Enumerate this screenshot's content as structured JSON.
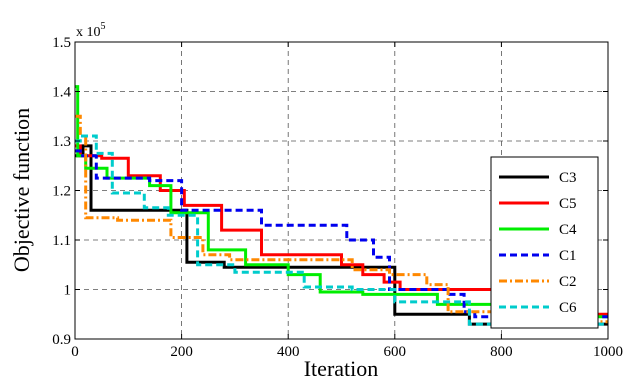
{
  "chart_data": {
    "type": "line",
    "step": true,
    "xlabel": "Iteration",
    "ylabel": "Objective function",
    "y_multiplier_label": "x 10",
    "y_multiplier_exponent": "5",
    "xlim": [
      0,
      1000
    ],
    "ylim": [
      0.9,
      1.5
    ],
    "x_ticks": [
      0,
      200,
      400,
      600,
      800,
      1000
    ],
    "x_tick_labels": [
      "0",
      "200",
      "400",
      "600",
      "800",
      "1000"
    ],
    "y_ticks": [
      0.9,
      1.0,
      1.1,
      1.2,
      1.3,
      1.4,
      1.5
    ],
    "y_tick_labels": [
      "0.9",
      "1",
      "1.1",
      "1.2",
      "1.3",
      "1.4",
      "1.5"
    ],
    "grid": true,
    "legend_position": "right",
    "series": [
      {
        "name": "C3",
        "color": "#000000",
        "dash": "solid",
        "x": [
          0,
          15,
          30,
          210,
          280,
          600,
          740,
          1000
        ],
        "y": [
          1.27,
          1.29,
          1.16,
          1.055,
          1.045,
          0.95,
          0.93,
          0.93
        ]
      },
      {
        "name": "C5",
        "color": "#ff0000",
        "dash": "solid",
        "x": [
          0,
          10,
          50,
          100,
          160,
          205,
          275,
          350,
          500,
          540,
          580,
          610,
          800,
          870,
          1000
        ],
        "y": [
          1.29,
          1.27,
          1.265,
          1.23,
          1.2,
          1.17,
          1.12,
          1.07,
          1.05,
          1.03,
          1.015,
          1.0,
          0.96,
          0.95,
          0.95
        ]
      },
      {
        "name": "C4",
        "color": "#00ee00",
        "dash": "solid",
        "x": [
          0,
          5,
          20,
          60,
          140,
          180,
          250,
          320,
          400,
          460,
          540,
          680,
          850,
          1000
        ],
        "y": [
          1.41,
          1.27,
          1.245,
          1.225,
          1.21,
          1.155,
          1.08,
          1.05,
          1.03,
          0.995,
          0.99,
          0.97,
          0.945,
          0.945
        ]
      },
      {
        "name": "C1",
        "color": "#0000ee",
        "dash": "dash",
        "x": [
          0,
          10,
          40,
          140,
          200,
          350,
          510,
          560,
          590,
          700,
          730,
          750,
          1000
        ],
        "y": [
          1.28,
          1.27,
          1.225,
          1.22,
          1.16,
          1.13,
          1.1,
          1.065,
          1.0,
          0.99,
          0.955,
          0.945,
          0.945
        ]
      },
      {
        "name": "C2",
        "color": "#ff8800",
        "dash": "dashdot",
        "x": [
          0,
          10,
          20,
          80,
          150,
          180,
          240,
          290,
          400,
          520,
          590,
          660,
          700,
          870,
          1000
        ],
        "y": [
          1.35,
          1.31,
          1.145,
          1.14,
          1.14,
          1.105,
          1.07,
          1.06,
          1.06,
          1.04,
          1.03,
          1.01,
          0.955,
          0.935,
          0.935
        ]
      },
      {
        "name": "C6",
        "color": "#00cccc",
        "dash": "dash",
        "x": [
          0,
          10,
          40,
          70,
          130,
          175,
          230,
          300,
          430,
          520,
          600,
          740,
          1000
        ],
        "y": [
          1.3,
          1.31,
          1.275,
          1.195,
          1.165,
          1.15,
          1.05,
          1.035,
          1.005,
          1.0,
          0.975,
          0.93,
          0.93
        ]
      }
    ]
  }
}
